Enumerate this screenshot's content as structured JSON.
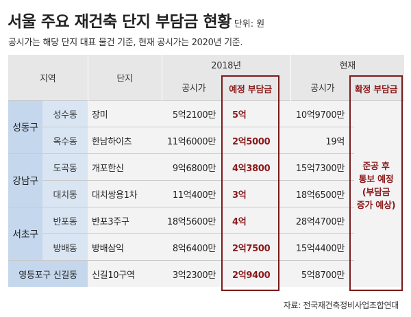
{
  "title": "서울 주요 재건축 단지 부담금 현황",
  "unit": "단위: 원",
  "subtitle": "공시가는 해당 단지 대표 물건 기준, 현재 공시가는 2020년 기준.",
  "headers": {
    "region": "지역",
    "danji": "단지",
    "year2018": "2018년",
    "current": "현재",
    "price2018": "공시가",
    "expected": "예정 부담금",
    "priceNow": "공시가",
    "confirmed": "확정 부담금"
  },
  "rows": [
    {
      "region": "성동구",
      "sub": "성수동",
      "danji": "장미",
      "price2018": "5억2100만",
      "expected": "5억",
      "priceNow": "10억9700만"
    },
    {
      "region": "",
      "sub": "옥수동",
      "danji": "한남하이츠",
      "price2018": "11억6000만",
      "expected": "2억5000",
      "priceNow": "19억"
    },
    {
      "region": "강남구",
      "sub": "도곡동",
      "danji": "개포한신",
      "price2018": "9억6800만",
      "expected": "4억3800",
      "priceNow": "15억7300만"
    },
    {
      "region": "",
      "sub": "대치동",
      "danji": "대치쌍용1차",
      "price2018": "11억400만",
      "expected": "3억",
      "priceNow": "18억6500만"
    },
    {
      "region": "서초구",
      "sub": "반포동",
      "danji": "반포3주구",
      "price2018": "18억5600만",
      "expected": "4억",
      "priceNow": "28억4700만"
    },
    {
      "region": "",
      "sub": "방배동",
      "danji": "방배삼익",
      "price2018": "8억6400만",
      "expected": "2억7500",
      "priceNow": "15억4400만"
    },
    {
      "region": "영등포구 신길동",
      "sub": "",
      "danji": "신길10구역",
      "price2018": "3억2300만",
      "expected": "2억9400",
      "priceNow": "5억8700만"
    }
  ],
  "confirmed_note": [
    "준공 후",
    "통보 예정",
    "(부담금",
    "증가 예상)"
  ],
  "source": "자료: 전국재건축정비사업조합연대"
}
